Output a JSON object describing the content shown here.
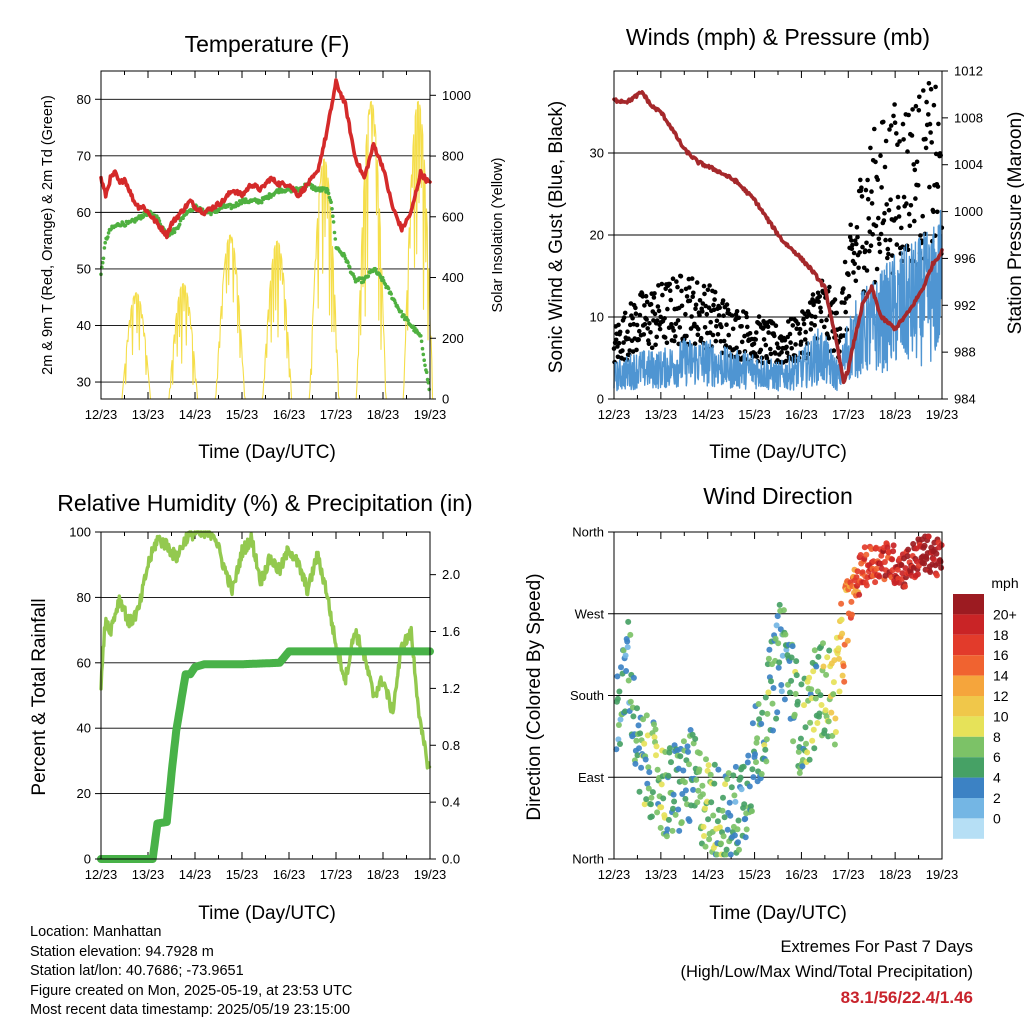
{
  "chart_data": [
    {
      "type": "line",
      "title": "Temperature (F)",
      "xlabel": "Time (Day/UTC)",
      "ylabel": "2m & 9m T (Red, Orange) & 2m Td (Green)",
      "y2label": "Solar Insolation (Yellow)",
      "x_ticks": [
        "12/23",
        "13/23",
        "14/23",
        "15/23",
        "16/23",
        "17/23",
        "18/23",
        "19/23"
      ],
      "ylim": [
        27,
        85
      ],
      "y_ticks": [
        30,
        40,
        50,
        60,
        70,
        80
      ],
      "y2lim": [
        0,
        1080
      ],
      "y2_ticks": [
        0,
        200,
        400,
        600,
        800,
        1000
      ],
      "grid": "horizontal",
      "colors": {
        "temperature": "#d42a2a",
        "dewpoint": "#4fb040",
        "solar": "#f5de4a"
      },
      "series": [
        {
          "key": "temperature",
          "axis": "left",
          "x": [
            0,
            0.1,
            0.2,
            0.3,
            0.4,
            0.5,
            0.6,
            0.7,
            0.8,
            0.9,
            1.0,
            1.2,
            1.4,
            1.5,
            1.7,
            1.9,
            2.0,
            2.2,
            2.4,
            2.6,
            2.8,
            3.0,
            3.2,
            3.4,
            3.6,
            3.8,
            4.0,
            4.2,
            4.4,
            4.6,
            4.8,
            5.0,
            5.2,
            5.4,
            5.6,
            5.8,
            6.0,
            6.2,
            6.4,
            6.6,
            6.8,
            7.0
          ],
          "y": [
            66,
            63,
            66,
            67,
            65,
            66,
            64,
            62,
            61,
            61,
            60,
            58,
            56,
            58,
            60,
            62,
            61,
            60,
            61,
            62,
            64,
            63,
            65,
            64,
            66,
            65,
            65,
            63,
            65,
            67,
            74,
            83,
            79,
            70,
            66,
            72,
            68,
            61,
            57,
            60,
            67,
            65
          ]
        },
        {
          "key": "dewpoint",
          "axis": "left",
          "x": [
            0,
            0.1,
            0.2,
            0.4,
            0.6,
            0.8,
            1.0,
            1.2,
            1.4,
            1.6,
            1.8,
            2.0,
            2.2,
            2.4,
            2.6,
            2.8,
            3.0,
            3.2,
            3.4,
            3.6,
            3.8,
            4.0,
            4.2,
            4.4,
            4.6,
            4.8,
            4.9,
            5.0,
            5.2,
            5.4,
            5.6,
            5.8,
            6.0,
            6.2,
            6.4,
            6.6,
            6.8,
            6.9,
            7.0
          ],
          "y": [
            49,
            55,
            57,
            58,
            58,
            59,
            60,
            59,
            56,
            57,
            60,
            61,
            60,
            60,
            61,
            61,
            62,
            62,
            62,
            63,
            64,
            64,
            64,
            65,
            64,
            64,
            62,
            54,
            52,
            48,
            48,
            50,
            48,
            45,
            42,
            40,
            38,
            33,
            28
          ]
        },
        {
          "key": "solar",
          "axis": "right",
          "peaks_x": [
            0.75,
            1.75,
            2.75,
            3.75,
            4.75,
            5.75,
            6.75
          ],
          "peaks_y": [
            380,
            410,
            570,
            550,
            820,
            1010,
            1010
          ]
        }
      ]
    },
    {
      "type": "line",
      "title": "Winds (mph) & Pressure (mb)",
      "xlabel": "Time (Day/UTC)",
      "ylabel": "Sonic Wind & Gust (Blue, Black)",
      "y2label": "Station Pressure (Maroon)",
      "x_ticks": [
        "12/23",
        "13/23",
        "14/23",
        "15/23",
        "16/23",
        "17/23",
        "18/23",
        "19/23"
      ],
      "ylim": [
        0,
        40
      ],
      "y_ticks": [
        0,
        10,
        20,
        30
      ],
      "y2lim": [
        984,
        1012
      ],
      "y2_ticks": [
        984,
        988,
        992,
        996,
        1000,
        1004,
        1008,
        1012
      ],
      "grid": "horizontal",
      "colors": {
        "wind": "#4f95d2",
        "gust": "#000000",
        "pressure": "#a5282b"
      },
      "series": [
        {
          "key": "pressure",
          "axis": "right",
          "x": [
            0,
            0.3,
            0.6,
            0.8,
            1.0,
            1.2,
            1.5,
            1.8,
            2.2,
            2.6,
            3.0,
            3.3,
            3.6,
            3.9,
            4.2,
            4.5,
            4.7,
            4.9,
            5.0,
            5.1,
            5.3,
            5.5,
            5.7,
            6.0,
            6.3,
            6.6,
            6.8,
            7.0
          ],
          "y": [
            1009.5,
            1009.4,
            1010.2,
            1009.0,
            1008.5,
            1007.3,
            1005.3,
            1004.2,
            1003.5,
            1002.6,
            1001.0,
            999.2,
            997.5,
            996.4,
            995.1,
            993.5,
            989.8,
            985.5,
            986.5,
            988.5,
            992.0,
            993.5,
            991.0,
            990.0,
            991.5,
            993.5,
            995.5,
            996.6
          ]
        },
        {
          "key": "wind",
          "axis": "left",
          "x": [
            0,
            0.5,
            1.0,
            1.5,
            2.0,
            2.5,
            3.0,
            3.5,
            4.0,
            4.4,
            4.8,
            5.0,
            5.3,
            5.6,
            6.0,
            6.4,
            6.8,
            7.0
          ],
          "y": [
            3,
            4,
            4,
            5,
            5,
            4,
            4,
            3,
            4,
            6,
            3,
            7,
            9,
            10,
            12,
            13,
            14,
            16
          ]
        },
        {
          "key": "gust",
          "axis": "left",
          "x": [
            0,
            0.5,
            1.0,
            1.5,
            2.0,
            2.5,
            3.0,
            3.5,
            4.0,
            4.4,
            4.8,
            5.0,
            5.3,
            5.6,
            6.0,
            6.4,
            6.8,
            7.0
          ],
          "y": [
            7,
            10,
            11,
            12,
            11,
            9,
            8,
            7,
            8,
            12,
            9,
            15,
            23,
            26,
            28,
            29,
            30,
            28
          ]
        }
      ]
    },
    {
      "type": "line",
      "title": "Relative Humidity (%) & Precipitation (in)",
      "xlabel": "Time (Day/UTC)",
      "ylabel": "Percent & Total Rainfall",
      "x_ticks": [
        "12/23",
        "13/23",
        "14/23",
        "15/23",
        "16/23",
        "17/23",
        "18/23",
        "19/23"
      ],
      "ylim": [
        0,
        100
      ],
      "y_ticks": [
        0,
        20,
        40,
        60,
        80,
        100
      ],
      "y2lim": [
        0,
        2.3
      ],
      "y2_ticks": [
        "0.0",
        "0.4",
        "0.8",
        "1.2",
        "1.6",
        "2.0"
      ],
      "grid": "horizontal",
      "colors": {
        "humidity": "#93c94f",
        "precip": "#48b248"
      },
      "series": [
        {
          "key": "humidity",
          "axis": "left",
          "x": [
            0,
            0.1,
            0.2,
            0.4,
            0.6,
            0.8,
            1.0,
            1.2,
            1.4,
            1.6,
            1.8,
            2.0,
            2.2,
            2.4,
            2.6,
            2.8,
            3.0,
            3.2,
            3.4,
            3.6,
            3.8,
            4.0,
            4.2,
            4.4,
            4.6,
            4.8,
            5.0,
            5.2,
            5.4,
            5.6,
            5.8,
            6.0,
            6.2,
            6.4,
            6.6,
            6.8,
            7.0
          ],
          "y": [
            54,
            74,
            70,
            80,
            72,
            76,
            90,
            98,
            96,
            92,
            98,
            100,
            99,
            100,
            90,
            82,
            94,
            98,
            85,
            92,
            88,
            95,
            90,
            82,
            93,
            82,
            65,
            55,
            70,
            62,
            50,
            55,
            45,
            65,
            69,
            40,
            26
          ]
        },
        {
          "key": "precip",
          "axis": "right",
          "x": [
            0,
            1.1,
            1.2,
            1.4,
            1.5,
            1.6,
            1.7,
            1.8,
            1.9,
            2.0,
            2.2,
            3.0,
            3.8,
            4.0,
            4.4,
            5.0,
            6.0,
            7.0
          ],
          "y": [
            0,
            0,
            0.25,
            0.26,
            0.6,
            0.9,
            1.1,
            1.3,
            1.3,
            1.35,
            1.37,
            1.37,
            1.38,
            1.46,
            1.46,
            1.46,
            1.46,
            1.46
          ]
        }
      ]
    },
    {
      "type": "scatter",
      "title": "Wind Direction",
      "xlabel": "Time (Day/UTC)",
      "ylabel": "Direction (Colored By Speed)",
      "x_ticks": [
        "12/23",
        "13/23",
        "14/23",
        "15/23",
        "16/23",
        "17/23",
        "18/23",
        "19/23"
      ],
      "y_ticks": [
        "North",
        "East",
        "South",
        "West",
        "North"
      ],
      "ylim": [
        0,
        360
      ],
      "grid": "horizontal",
      "legend": {
        "title": "mph",
        "placement": "right",
        "labels": [
          "20+",
          "18",
          "16",
          "14",
          "12",
          "10",
          "8",
          "6",
          "4",
          "2",
          "0"
        ],
        "colors": [
          "#9c1b21",
          "#c92426",
          "#e23b2b",
          "#f06330",
          "#f5a53c",
          "#f0c74a",
          "#e6e259",
          "#7cc267",
          "#46a165",
          "#3c82c4",
          "#74b6e4",
          "#b6dff5"
        ]
      },
      "series": [
        {
          "name": "direction",
          "x": [
            0.1,
            0.2,
            0.3,
            0.5,
            0.8,
            1.0,
            1.2,
            1.6,
            2.0,
            2.5,
            2.8,
            3.2,
            3.6,
            4.0,
            4.4,
            4.7,
            5.0,
            5.3,
            5.7,
            6.2,
            6.7,
            7.0
          ],
          "y": [
            170,
            180,
            230,
            110,
            100,
            80,
            70,
            90,
            60,
            40,
            75,
            150,
            240,
            140,
            190,
            175,
            280,
            320,
            330,
            320,
            340,
            325
          ],
          "speed": [
            3,
            4,
            3,
            4,
            5,
            6,
            4,
            4,
            6,
            4,
            3,
            5,
            3,
            5,
            6,
            8,
            14,
            16,
            17,
            18,
            20,
            19
          ]
        }
      ]
    }
  ],
  "charts_text": {
    "temp": {
      "title": "Temperature (F)",
      "xlabel": "Time (Day/UTC)",
      "ylabel": "2m & 9m T (Red, Orange) & 2m Td (Green)",
      "y2label": "Solar Insolation (Yellow)"
    },
    "wind": {
      "title": "Winds (mph) & Pressure (mb)",
      "xlabel": "Time (Day/UTC)",
      "ylabel": "Sonic Wind & Gust (Blue, Black)",
      "y2label": "Station Pressure (Maroon)"
    },
    "rh": {
      "title": "Relative Humidity (%) & Precipitation (in)",
      "xlabel": "Time (Day/UTC)",
      "ylabel": "Percent & Total Rainfall"
    },
    "dir": {
      "title": "Wind Direction",
      "xlabel": "Time (Day/UTC)",
      "ylabel": "Direction (Colored By Speed)"
    }
  },
  "info": {
    "location": "Location: Manhattan",
    "elevation": "Station elevation: 94.7928 m",
    "latlon": "Station lat/lon: 40.7686; -73.9651",
    "created": "Figure created on Mon, 2025-05-19, at 23:53 UTC",
    "timestamp": "Most recent data timestamp: 2025/05/19 23:15:00"
  },
  "extremes": {
    "title": "Extremes For Past 7 Days",
    "subtitle": "(High/Low/Max Wind/Total Precipitation)",
    "values": "83.1/56/22.4/1.46"
  }
}
